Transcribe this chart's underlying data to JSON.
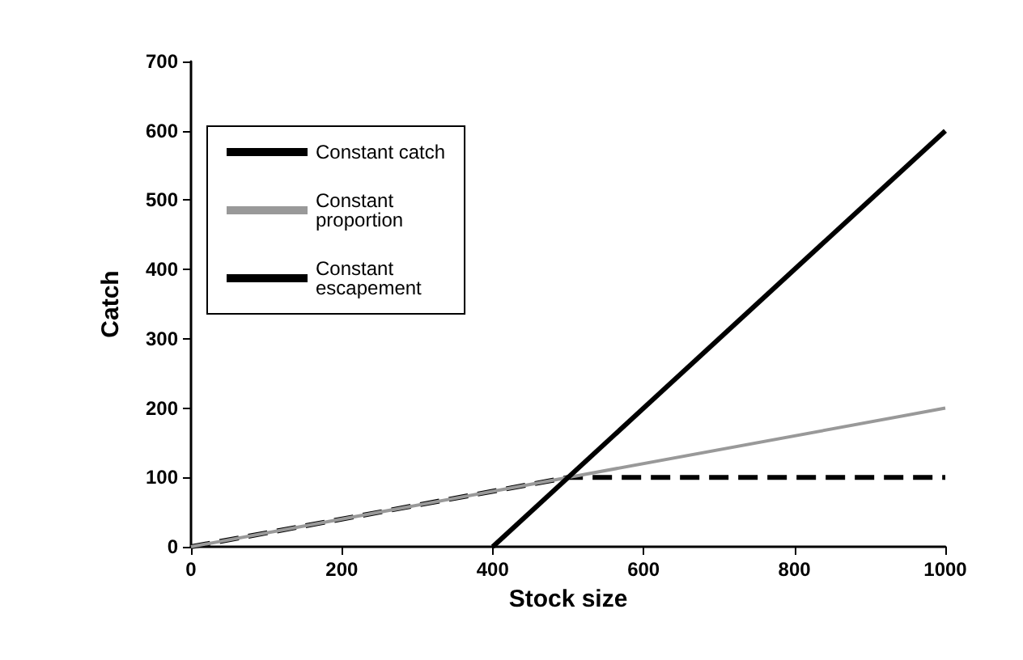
{
  "chart_data": {
    "type": "line",
    "xlabel": "Stock size",
    "ylabel": "Catch",
    "xlim": [
      0,
      1000
    ],
    "xticks": [
      0,
      200,
      400,
      600,
      800,
      1000
    ],
    "ylim": [
      0,
      700
    ],
    "yticks": [
      0,
      100,
      200,
      300,
      400,
      500,
      600,
      700
    ],
    "grid": false,
    "legend": "top left",
    "marker": "none",
    "series": [
      {
        "name": "Constant catch",
        "color": "#000000",
        "line_style": "dashed",
        "x": [
          0,
          500,
          1000
        ],
        "values": [
          0,
          100,
          100
        ]
      },
      {
        "name": "Constant proportion",
        "color": "#999999",
        "line_style": "solid",
        "x": [
          0,
          1000
        ],
        "values": [
          0,
          200
        ]
      },
      {
        "name": "Constant escapement",
        "color": "#000000",
        "line_style": "solid",
        "x": [
          400,
          1000
        ],
        "values": [
          0,
          600
        ]
      }
    ]
  }
}
